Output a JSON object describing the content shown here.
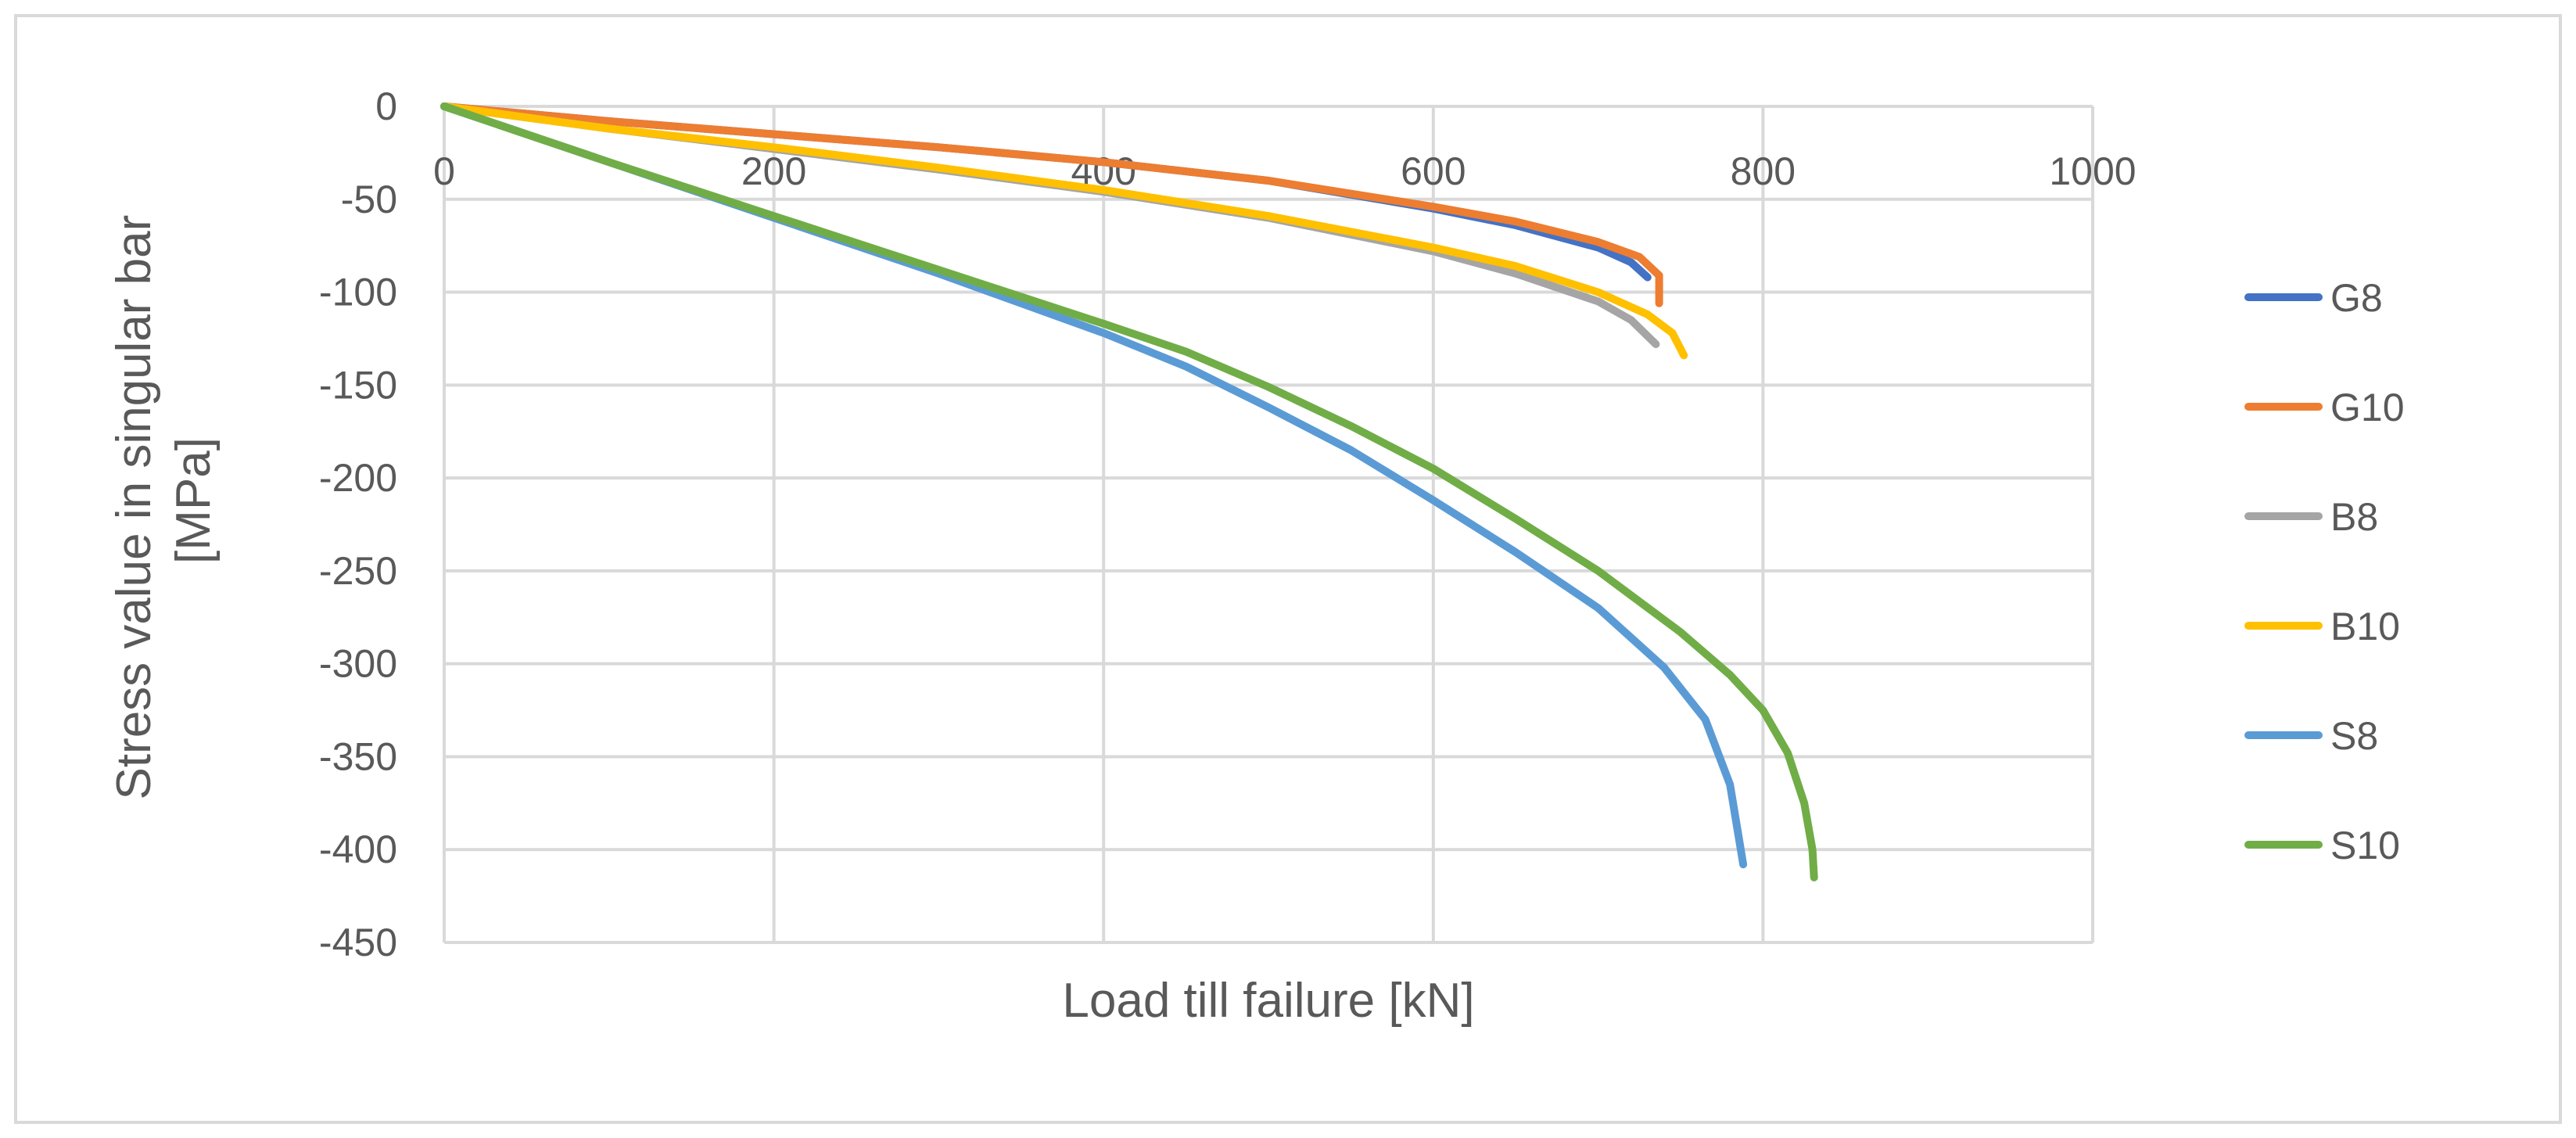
{
  "chart_data": {
    "type": "line",
    "title": "",
    "xlabel": "Load till failure [kN]",
    "ylabel_lines": [
      "Stress value  in singular bar",
      "[MPa]"
    ],
    "xlim": [
      0,
      1000
    ],
    "ylim": [
      -450,
      0
    ],
    "x_ticks": [
      0,
      200,
      400,
      600,
      800,
      1000
    ],
    "y_ticks": [
      0,
      -50,
      -100,
      -150,
      -200,
      -250,
      -300,
      -350,
      -400,
      -450
    ],
    "grid": true,
    "legend_position": "right",
    "series": [
      {
        "name": "G8",
        "color": "#4472C4",
        "points": [
          [
            0,
            0
          ],
          [
            100,
            -8
          ],
          [
            200,
            -15
          ],
          [
            300,
            -22
          ],
          [
            400,
            -30
          ],
          [
            500,
            -40
          ],
          [
            600,
            -55
          ],
          [
            650,
            -64
          ],
          [
            700,
            -76
          ],
          [
            720,
            -84
          ],
          [
            730,
            -92
          ]
        ]
      },
      {
        "name": "G10",
        "color": "#ED7D31",
        "points": [
          [
            0,
            0
          ],
          [
            100,
            -8
          ],
          [
            200,
            -15
          ],
          [
            300,
            -22
          ],
          [
            400,
            -30
          ],
          [
            500,
            -40
          ],
          [
            600,
            -54
          ],
          [
            650,
            -62
          ],
          [
            700,
            -73
          ],
          [
            725,
            -81
          ],
          [
            737,
            -91
          ],
          [
            737,
            -106
          ]
        ]
      },
      {
        "name": "B8",
        "color": "#A5A5A5",
        "points": [
          [
            0,
            0
          ],
          [
            100,
            -12
          ],
          [
            200,
            -23
          ],
          [
            300,
            -34
          ],
          [
            400,
            -46
          ],
          [
            500,
            -60
          ],
          [
            600,
            -78
          ],
          [
            650,
            -90
          ],
          [
            700,
            -105
          ],
          [
            720,
            -115
          ],
          [
            735,
            -128
          ]
        ]
      },
      {
        "name": "B10",
        "color": "#FFC000",
        "points": [
          [
            0,
            0
          ],
          [
            100,
            -12
          ],
          [
            200,
            -22
          ],
          [
            300,
            -33
          ],
          [
            400,
            -45
          ],
          [
            500,
            -59
          ],
          [
            600,
            -76
          ],
          [
            650,
            -86
          ],
          [
            700,
            -100
          ],
          [
            730,
            -112
          ],
          [
            745,
            -122
          ],
          [
            752,
            -134
          ]
        ]
      },
      {
        "name": "S8",
        "color": "#5B9BD5",
        "points": [
          [
            0,
            0
          ],
          [
            100,
            -30
          ],
          [
            200,
            -60
          ],
          [
            300,
            -90
          ],
          [
            400,
            -122
          ],
          [
            450,
            -140
          ],
          [
            500,
            -162
          ],
          [
            550,
            -185
          ],
          [
            600,
            -212
          ],
          [
            650,
            -240
          ],
          [
            700,
            -270
          ],
          [
            740,
            -302
          ],
          [
            765,
            -330
          ],
          [
            780,
            -365
          ],
          [
            788,
            -408
          ]
        ]
      },
      {
        "name": "S10",
        "color": "#70AD47",
        "points": [
          [
            0,
            0
          ],
          [
            100,
            -30
          ],
          [
            200,
            -59
          ],
          [
            300,
            -88
          ],
          [
            400,
            -117
          ],
          [
            450,
            -132
          ],
          [
            500,
            -151
          ],
          [
            550,
            -172
          ],
          [
            600,
            -195
          ],
          [
            650,
            -222
          ],
          [
            700,
            -250
          ],
          [
            750,
            -283
          ],
          [
            780,
            -306
          ],
          [
            800,
            -325
          ],
          [
            815,
            -348
          ],
          [
            825,
            -375
          ],
          [
            830,
            -400
          ],
          [
            831,
            -415
          ]
        ]
      }
    ]
  }
}
